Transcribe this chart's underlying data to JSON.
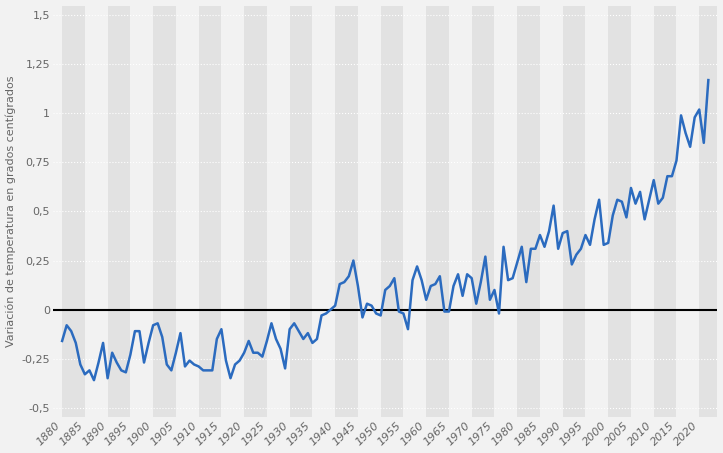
{
  "years": [
    1880,
    1881,
    1882,
    1883,
    1884,
    1885,
    1886,
    1887,
    1888,
    1889,
    1890,
    1891,
    1892,
    1893,
    1894,
    1895,
    1896,
    1897,
    1898,
    1899,
    1900,
    1901,
    1902,
    1903,
    1904,
    1905,
    1906,
    1907,
    1908,
    1909,
    1910,
    1911,
    1912,
    1913,
    1914,
    1915,
    1916,
    1917,
    1918,
    1919,
    1920,
    1921,
    1922,
    1923,
    1924,
    1925,
    1926,
    1927,
    1928,
    1929,
    1930,
    1931,
    1932,
    1933,
    1934,
    1935,
    1936,
    1937,
    1938,
    1939,
    1940,
    1941,
    1942,
    1943,
    1944,
    1945,
    1946,
    1947,
    1948,
    1949,
    1950,
    1951,
    1952,
    1953,
    1954,
    1955,
    1956,
    1957,
    1958,
    1959,
    1960,
    1961,
    1962,
    1963,
    1964,
    1965,
    1966,
    1967,
    1968,
    1969,
    1970,
    1971,
    1972,
    1973,
    1974,
    1975,
    1976,
    1977,
    1978,
    1979,
    1980,
    1981,
    1982,
    1983,
    1984,
    1985,
    1986,
    1987,
    1988,
    1989,
    1990,
    1991,
    1992,
    1993,
    1994,
    1995,
    1996,
    1997,
    1998,
    1999,
    2000,
    2001,
    2002,
    2003,
    2004,
    2005,
    2006,
    2007,
    2008,
    2009,
    2010,
    2011,
    2012,
    2013,
    2014,
    2015,
    2016,
    2017,
    2018,
    2019,
    2020,
    2021,
    2022
  ],
  "anomalies": [
    -0.16,
    -0.08,
    -0.11,
    -0.17,
    -0.28,
    -0.33,
    -0.31,
    -0.36,
    -0.27,
    -0.17,
    -0.35,
    -0.22,
    -0.27,
    -0.31,
    -0.32,
    -0.23,
    -0.11,
    -0.11,
    -0.27,
    -0.17,
    -0.08,
    -0.07,
    -0.14,
    -0.28,
    -0.31,
    -0.22,
    -0.12,
    -0.29,
    -0.26,
    -0.28,
    -0.29,
    -0.31,
    -0.31,
    -0.31,
    -0.15,
    -0.1,
    -0.26,
    -0.35,
    -0.28,
    -0.26,
    -0.22,
    -0.16,
    -0.22,
    -0.22,
    -0.24,
    -0.16,
    -0.07,
    -0.15,
    -0.2,
    -0.3,
    -0.1,
    -0.07,
    -0.11,
    -0.15,
    -0.12,
    -0.17,
    -0.15,
    -0.03,
    -0.02,
    0.0,
    0.02,
    0.13,
    0.14,
    0.17,
    0.25,
    0.12,
    -0.04,
    0.03,
    0.02,
    -0.02,
    -0.03,
    0.1,
    0.12,
    0.16,
    -0.01,
    -0.02,
    -0.1,
    0.15,
    0.22,
    0.15,
    0.05,
    0.12,
    0.13,
    0.17,
    -0.01,
    -0.01,
    0.12,
    0.18,
    0.07,
    0.18,
    0.16,
    0.03,
    0.14,
    0.27,
    0.05,
    0.1,
    -0.02,
    0.32,
    0.15,
    0.16,
    0.24,
    0.32,
    0.14,
    0.31,
    0.31,
    0.38,
    0.32,
    0.4,
    0.53,
    0.31,
    0.39,
    0.4,
    0.23,
    0.28,
    0.31,
    0.38,
    0.33,
    0.46,
    0.56,
    0.33,
    0.34,
    0.48,
    0.56,
    0.55,
    0.47,
    0.62,
    0.54,
    0.6,
    0.46,
    0.56,
    0.66,
    0.54,
    0.57,
    0.68,
    0.68,
    0.76,
    0.99,
    0.9,
    0.83,
    0.98,
    1.02,
    0.85,
    1.17
  ],
  "line_color": "#2b6bbf",
  "zero_line_color": "#000000",
  "bg_color": "#f2f2f2",
  "plot_bg_color": "#f2f2f2",
  "stripe_dark": "#e2e2e2",
  "stripe_light": "#f2f2f2",
  "grid_color": "#ffffff",
  "ylabel": "Variación de temperatura en grados centígrados",
  "yticks": [
    -0.5,
    -0.25,
    0,
    0.25,
    0.5,
    0.75,
    1.0,
    1.25,
    1.5
  ],
  "ytick_labels": [
    "-0,5",
    "-0,25",
    "0",
    "0,25",
    "0,5",
    "0,75",
    "1",
    "1,25",
    "1,5"
  ],
  "xticks": [
    1880,
    1885,
    1890,
    1895,
    1900,
    1905,
    1910,
    1915,
    1920,
    1925,
    1930,
    1935,
    1940,
    1945,
    1950,
    1955,
    1960,
    1965,
    1970,
    1975,
    1980,
    1985,
    1990,
    1995,
    2000,
    2005,
    2010,
    2015,
    2020
  ],
  "xlim": [
    1878,
    2024
  ],
  "ylim": [
    -0.55,
    1.55
  ],
  "line_width": 1.8,
  "font_size_ticks": 8,
  "font_size_ylabel": 8,
  "ylabel_color": "#666666",
  "tick_color": "#666666"
}
